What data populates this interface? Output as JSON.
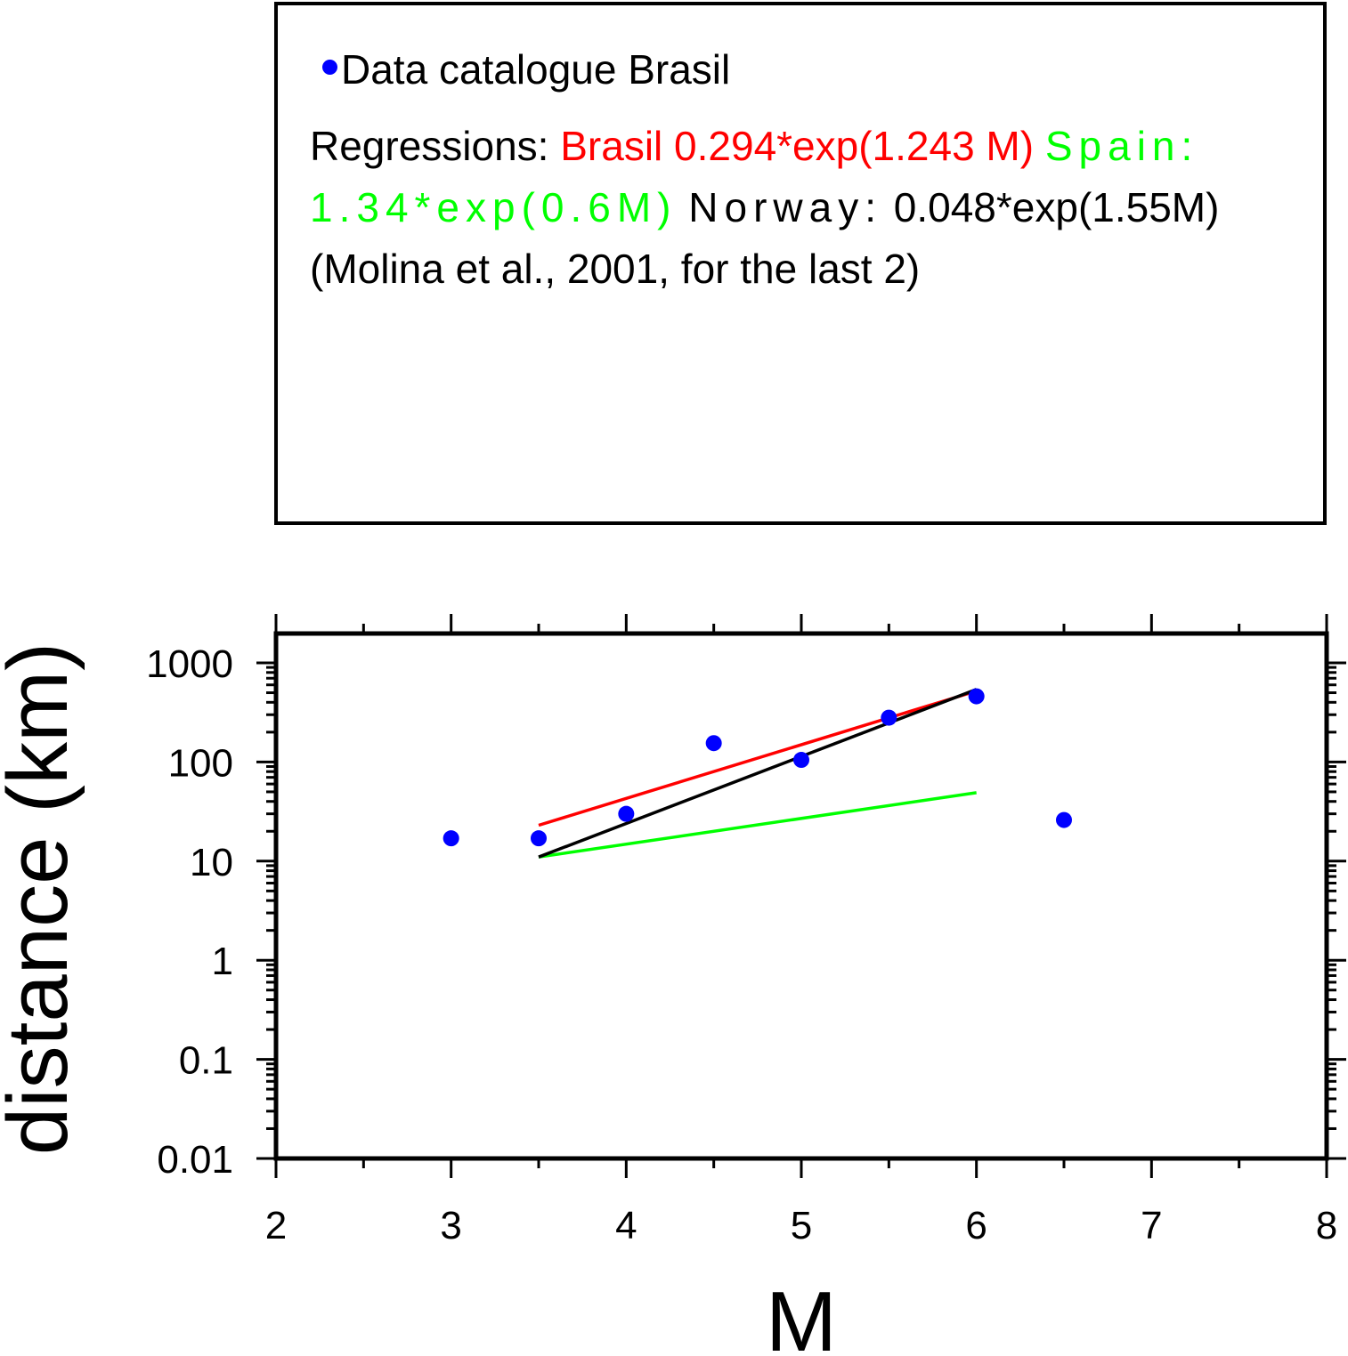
{
  "legend": {
    "series_label": "Data catalogue Brasil",
    "regressions_prefix": "Regressions: ",
    "brasil_label": "Brasil 0.294*exp(1.243 M)",
    "spain_label": "Spain: 1.34*exp(0.6M)",
    "norway_label": "Norway:",
    "norway_rest": "0.048*exp(1.55M) (Molina et al., 2001, for the last 2)"
  },
  "colors": {
    "points": "#0000ff",
    "brasil": "#ff0000",
    "spain": "#00ff00",
    "norway": "#000000"
  },
  "chart_data": {
    "type": "scatter",
    "xlabel": "M",
    "ylabel": "distance (km)",
    "xlim": [
      2,
      8
    ],
    "ylim": [
      0.01,
      2000
    ],
    "yscale": "log",
    "x_ticks": [
      2,
      3,
      4,
      5,
      6,
      7,
      8
    ],
    "y_ticks": [
      {
        "value": 0.01,
        "label": "0.01"
      },
      {
        "value": 0.1,
        "label": "0.1"
      },
      {
        "value": 1,
        "label": "1"
      },
      {
        "value": 10,
        "label": "10"
      },
      {
        "value": 100,
        "label": "100"
      },
      {
        "value": 1000,
        "label": "1000"
      }
    ],
    "grid": false,
    "points": {
      "name": "Data catalogue Brasil",
      "x": [
        3,
        3.5,
        4,
        4.5,
        5,
        5.5,
        6,
        6.5
      ],
      "y": [
        17,
        17,
        30,
        155,
        105,
        280,
        460,
        26
      ]
    },
    "lines": [
      {
        "name": "Brasil",
        "color": "#ff0000",
        "x": [
          3.5,
          6
        ],
        "y": [
          23,
          520
        ]
      },
      {
        "name": "Spain",
        "color": "#00ff00",
        "x": [
          3.5,
          6
        ],
        "y": [
          11,
          49
        ]
      },
      {
        "name": "Norway",
        "color": "#000000",
        "x": [
          3.5,
          6
        ],
        "y": [
          11,
          540
        ]
      }
    ]
  }
}
